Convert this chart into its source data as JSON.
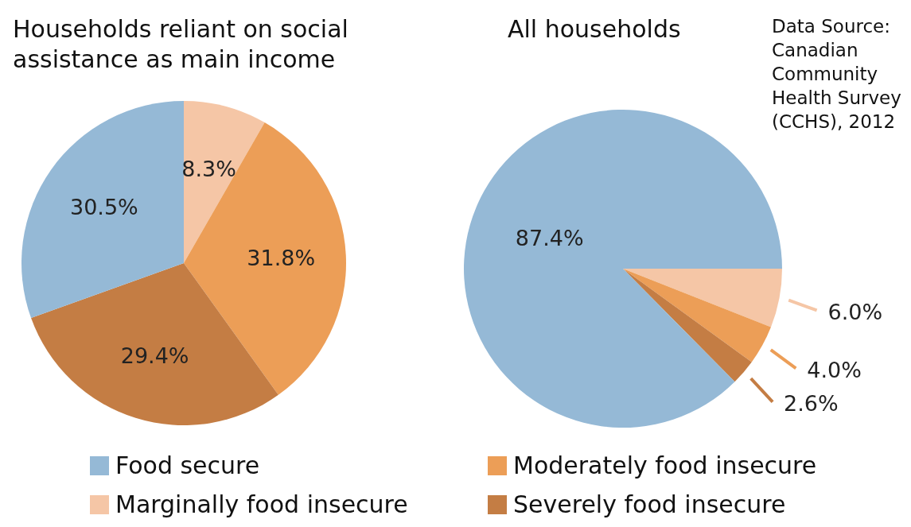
{
  "chart_data": [
    {
      "type": "pie",
      "title": "Households reliant on social assistance as main income",
      "categories": [
        "Marginally food insecure",
        "Moderately food insecure",
        "Severely food insecure",
        "Food secure"
      ],
      "values": [
        8.3,
        31.8,
        29.4,
        30.5
      ],
      "colors": [
        "#f5c6a6",
        "#ec9e57",
        "#c47d44",
        "#95b9d6"
      ],
      "value_labels": [
        "8.3%",
        "31.8%",
        "29.4%",
        "30.5%"
      ],
      "legend": "bottom"
    },
    {
      "type": "pie",
      "title": "All households",
      "categories": [
        null,
        null,
        null,
        null
      ],
      "values": [
        6.0,
        4.0,
        2.6,
        87.4
      ],
      "colors": [
        "#f5c6a6",
        "#ec9e57",
        "#c47d44",
        "#95b9d6"
      ],
      "value_labels": [
        "6.0%",
        "4.0%",
        "2.6%",
        "87.4%"
      ],
      "annotations": [
        "Data Source: Canadian Community Health Survey (CCHS), 2012"
      ]
    }
  ]
}
